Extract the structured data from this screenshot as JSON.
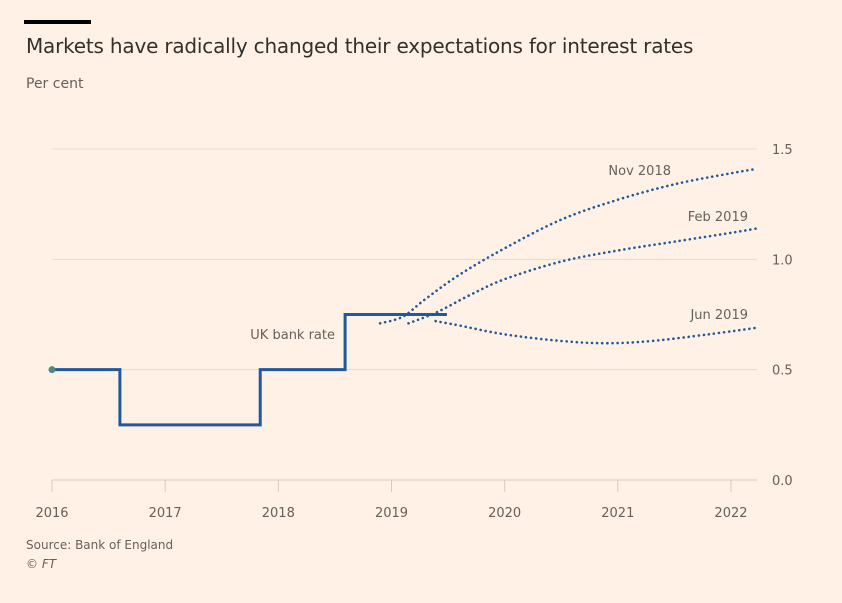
{
  "header": {
    "title": "Markets have radically changed their expectations for interest rates",
    "subtitle": "Per cent"
  },
  "footer": {
    "source": "Source: Bank of England",
    "copyright": "© FT"
  },
  "colors": {
    "background": "#fff1e5",
    "series": "#1f5a9e",
    "grid": "#e6d9ce",
    "text": "#66605c",
    "start_dot": "#4f8a8b"
  },
  "chart_data": {
    "type": "line",
    "title": "Markets have radically changed their expectations for interest rates",
    "ylabel": "Per cent",
    "xlabel": "",
    "xlim": [
      2016,
      2022.23
    ],
    "ylim": [
      0,
      1.5
    ],
    "y_ticks": [
      0.0,
      0.5,
      1.0,
      1.5
    ],
    "y_tick_labels": [
      "0.0",
      "0.5",
      "1.0",
      "1.5"
    ],
    "y_axis_position": "right",
    "x_ticks": [
      2016,
      2017,
      2018,
      2019,
      2020,
      2021,
      2022
    ],
    "x_tick_labels": [
      "2016",
      "2017",
      "2018",
      "2019",
      "2020",
      "2021",
      "2022"
    ],
    "grid": true,
    "series": [
      {
        "name": "UK bank rate",
        "style": "step-solid",
        "label": "UK bank rate",
        "points": [
          [
            2016.0,
            0.5
          ],
          [
            2016.6,
            0.5
          ],
          [
            2016.6,
            0.25
          ],
          [
            2017.84,
            0.25
          ],
          [
            2017.84,
            0.5
          ],
          [
            2018.59,
            0.5
          ],
          [
            2018.59,
            0.75
          ],
          [
            2019.49,
            0.75
          ]
        ]
      },
      {
        "name": "Nov 2018",
        "style": "dotted",
        "label": "Nov 2018",
        "points": [
          [
            2018.9,
            0.71
          ],
          [
            2019.1,
            0.74
          ],
          [
            2019.3,
            0.82
          ],
          [
            2019.6,
            0.93
          ],
          [
            2020.0,
            1.05
          ],
          [
            2020.5,
            1.18
          ],
          [
            2021.0,
            1.27
          ],
          [
            2021.5,
            1.34
          ],
          [
            2022.0,
            1.39
          ],
          [
            2022.23,
            1.41
          ]
        ]
      },
      {
        "name": "Feb 2019",
        "style": "dotted",
        "label": "Feb 2019",
        "points": [
          [
            2019.15,
            0.71
          ],
          [
            2019.4,
            0.76
          ],
          [
            2019.7,
            0.84
          ],
          [
            2020.0,
            0.91
          ],
          [
            2020.5,
            0.99
          ],
          [
            2021.0,
            1.04
          ],
          [
            2021.5,
            1.08
          ],
          [
            2022.0,
            1.12
          ],
          [
            2022.23,
            1.14
          ]
        ]
      },
      {
        "name": "Jun 2019",
        "style": "dotted",
        "label": "Jun 2019",
        "points": [
          [
            2019.39,
            0.72
          ],
          [
            2019.6,
            0.7
          ],
          [
            2020.0,
            0.66
          ],
          [
            2020.5,
            0.63
          ],
          [
            2020.9,
            0.62
          ],
          [
            2021.3,
            0.63
          ],
          [
            2021.8,
            0.66
          ],
          [
            2022.23,
            0.69
          ]
        ]
      }
    ]
  }
}
